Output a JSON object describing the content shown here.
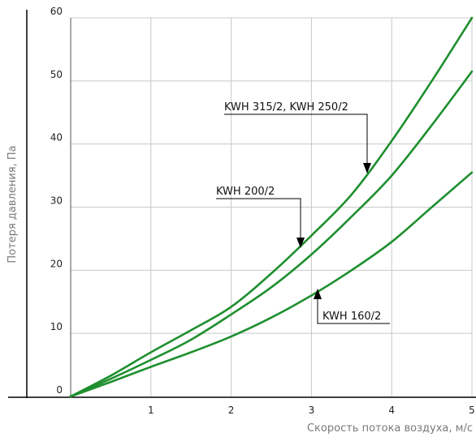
{
  "chart_data": {
    "type": "line",
    "title": "",
    "xlabel": "Скорость потока воздуха, м/с",
    "ylabel": "Потеря давления, Па",
    "xlim": [
      0,
      5
    ],
    "ylim": [
      0,
      60
    ],
    "x_ticks": [
      "1",
      "2",
      "3",
      "4",
      "5"
    ],
    "y_ticks": [
      "0",
      "10",
      "20",
      "30",
      "40",
      "50",
      "60"
    ],
    "grid": true,
    "line_color": "#1e8f2f",
    "series": [
      {
        "name": "KWH 315/2, KWH 250/2",
        "x": [
          0,
          0.5,
          1,
          1.5,
          2,
          2.5,
          3,
          3.5,
          4,
          4.5,
          5
        ],
        "y": [
          0,
          3.3,
          7,
          10.5,
          14.2,
          19.5,
          25.5,
          32,
          40.5,
          50,
          60
        ]
      },
      {
        "name": "KWH 200/2",
        "x": [
          0,
          0.5,
          1,
          1.5,
          2,
          2.5,
          3,
          3.5,
          4,
          4.5,
          5
        ],
        "y": [
          0,
          2.8,
          5.8,
          9,
          13,
          17.3,
          22.5,
          28.5,
          35,
          43,
          51.5
        ]
      },
      {
        "name": "KWH 160/2",
        "x": [
          0,
          0.5,
          1,
          1.5,
          2,
          2.5,
          3,
          3.5,
          4,
          4.5,
          5
        ],
        "y": [
          0,
          2.3,
          4.7,
          7,
          9.5,
          12.5,
          16,
          20,
          24.5,
          30,
          35.5
        ]
      }
    ],
    "annotations": [
      {
        "text": "KWH 315/2, KWH 250/2",
        "series": 0,
        "arrow_to": [
          3.65,
          35.5
        ]
      },
      {
        "text": "KWH 200/2",
        "series": 1,
        "arrow_to": [
          2.85,
          23.5
        ]
      },
      {
        "text": "KWH 160/2",
        "series": 2,
        "arrow_to": [
          3.1,
          17
        ]
      }
    ]
  }
}
